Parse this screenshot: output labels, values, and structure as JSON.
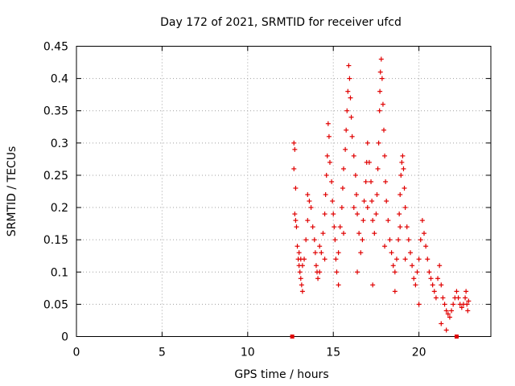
{
  "chart_data": {
    "type": "scatter",
    "title": "Day 172 of 2021, SRMTID for receiver ufcd",
    "xlabel": "GPS time / hours",
    "ylabel": "SRMTID / TECUs",
    "xlim": [
      0,
      24.2
    ],
    "ylim": [
      0,
      0.45
    ],
    "xticks": [
      0,
      5,
      10,
      15,
      20
    ],
    "xtick_labels": [
      "0",
      "5",
      "10",
      "15",
      "20"
    ],
    "yticks": [
      0,
      0.05,
      0.1,
      0.15,
      0.2,
      0.25,
      0.3,
      0.35,
      0.4,
      0.45
    ],
    "ytick_labels": [
      "0",
      "0.05",
      "0.1",
      "0.15",
      "0.2",
      "0.25",
      "0.3",
      "0.35",
      "0.4",
      "0.45"
    ],
    "grid": true,
    "marker": "+",
    "color": "#e00000",
    "axis_markers_x": [
      12.6,
      22.2
    ],
    "series": [
      {
        "name": "SRMTID",
        "points": [
          [
            12.7,
            0.3
          ],
          [
            12.75,
            0.29
          ],
          [
            12.7,
            0.26
          ],
          [
            12.8,
            0.23
          ],
          [
            12.75,
            0.19
          ],
          [
            12.8,
            0.18
          ],
          [
            12.85,
            0.17
          ],
          [
            12.9,
            0.14
          ],
          [
            12.95,
            0.12
          ],
          [
            13.0,
            0.11
          ],
          [
            13.05,
            0.1
          ],
          [
            13.1,
            0.09
          ],
          [
            13.15,
            0.08
          ],
          [
            13.2,
            0.07
          ],
          [
            13.0,
            0.13
          ],
          [
            13.1,
            0.12
          ],
          [
            13.2,
            0.11
          ],
          [
            13.3,
            0.12
          ],
          [
            13.4,
            0.15
          ],
          [
            13.5,
            0.18
          ],
          [
            13.5,
            0.22
          ],
          [
            13.6,
            0.21
          ],
          [
            13.7,
            0.2
          ],
          [
            13.8,
            0.17
          ],
          [
            13.9,
            0.15
          ],
          [
            13.95,
            0.13
          ],
          [
            14.0,
            0.11
          ],
          [
            14.05,
            0.1
          ],
          [
            14.1,
            0.09
          ],
          [
            14.2,
            0.1
          ],
          [
            14.3,
            0.13
          ],
          [
            14.4,
            0.16
          ],
          [
            14.5,
            0.19
          ],
          [
            14.55,
            0.22
          ],
          [
            14.6,
            0.25
          ],
          [
            14.65,
            0.28
          ],
          [
            14.7,
            0.33
          ],
          [
            14.75,
            0.31
          ],
          [
            14.8,
            0.27
          ],
          [
            14.9,
            0.24
          ],
          [
            14.95,
            0.21
          ],
          [
            15.0,
            0.19
          ],
          [
            15.05,
            0.17
          ],
          [
            15.1,
            0.15
          ],
          [
            15.15,
            0.12
          ],
          [
            15.2,
            0.1
          ],
          [
            15.3,
            0.13
          ],
          [
            15.4,
            0.17
          ],
          [
            15.5,
            0.2
          ],
          [
            15.55,
            0.23
          ],
          [
            15.6,
            0.26
          ],
          [
            15.7,
            0.29
          ],
          [
            15.75,
            0.32
          ],
          [
            15.8,
            0.35
          ],
          [
            15.85,
            0.38
          ],
          [
            15.9,
            0.42
          ],
          [
            15.95,
            0.4
          ],
          [
            16.0,
            0.37
          ],
          [
            16.05,
            0.34
          ],
          [
            16.1,
            0.31
          ],
          [
            16.2,
            0.28
          ],
          [
            16.3,
            0.25
          ],
          [
            16.35,
            0.22
          ],
          [
            16.4,
            0.19
          ],
          [
            16.5,
            0.16
          ],
          [
            16.6,
            0.13
          ],
          [
            16.7,
            0.15
          ],
          [
            16.75,
            0.18
          ],
          [
            16.8,
            0.21
          ],
          [
            16.9,
            0.24
          ],
          [
            16.95,
            0.27
          ],
          [
            17.0,
            0.3
          ],
          [
            17.1,
            0.27
          ],
          [
            17.2,
            0.24
          ],
          [
            17.25,
            0.21
          ],
          [
            17.3,
            0.18
          ],
          [
            17.4,
            0.16
          ],
          [
            17.5,
            0.19
          ],
          [
            17.55,
            0.22
          ],
          [
            17.6,
            0.26
          ],
          [
            17.65,
            0.3
          ],
          [
            17.7,
            0.35
          ],
          [
            17.72,
            0.38
          ],
          [
            17.75,
            0.41
          ],
          [
            17.8,
            0.43
          ],
          [
            17.85,
            0.4
          ],
          [
            17.9,
            0.36
          ],
          [
            17.95,
            0.32
          ],
          [
            18.0,
            0.28
          ],
          [
            18.05,
            0.24
          ],
          [
            18.1,
            0.21
          ],
          [
            18.2,
            0.18
          ],
          [
            18.3,
            0.15
          ],
          [
            18.4,
            0.13
          ],
          [
            18.5,
            0.11
          ],
          [
            18.6,
            0.1
          ],
          [
            18.7,
            0.12
          ],
          [
            18.8,
            0.15
          ],
          [
            18.85,
            0.19
          ],
          [
            18.9,
            0.22
          ],
          [
            18.95,
            0.25
          ],
          [
            19.0,
            0.27
          ],
          [
            19.05,
            0.28
          ],
          [
            19.1,
            0.26
          ],
          [
            19.15,
            0.23
          ],
          [
            19.2,
            0.2
          ],
          [
            19.3,
            0.17
          ],
          [
            19.4,
            0.15
          ],
          [
            19.5,
            0.13
          ],
          [
            19.6,
            0.11
          ],
          [
            19.7,
            0.09
          ],
          [
            19.8,
            0.08
          ],
          [
            19.9,
            0.1
          ],
          [
            20.0,
            0.12
          ],
          [
            20.1,
            0.15
          ],
          [
            20.2,
            0.18
          ],
          [
            20.3,
            0.16
          ],
          [
            20.4,
            0.14
          ],
          [
            20.5,
            0.12
          ],
          [
            20.6,
            0.1
          ],
          [
            20.7,
            0.09
          ],
          [
            20.8,
            0.08
          ],
          [
            20.9,
            0.07
          ],
          [
            21.0,
            0.06
          ],
          [
            21.1,
            0.09
          ],
          [
            21.2,
            0.11
          ],
          [
            21.3,
            0.08
          ],
          [
            21.4,
            0.06
          ],
          [
            21.5,
            0.05
          ],
          [
            21.6,
            0.04
          ],
          [
            21.7,
            0.035
          ],
          [
            21.8,
            0.03
          ],
          [
            21.9,
            0.04
          ],
          [
            22.0,
            0.05
          ],
          [
            22.1,
            0.06
          ],
          [
            22.2,
            0.07
          ],
          [
            22.3,
            0.06
          ],
          [
            22.4,
            0.05
          ],
          [
            22.5,
            0.045
          ],
          [
            22.6,
            0.05
          ],
          [
            22.7,
            0.06
          ],
          [
            22.75,
            0.07
          ],
          [
            22.8,
            0.05
          ],
          [
            22.85,
            0.04
          ],
          [
            22.9,
            0.055
          ],
          [
            14.2,
            0.14
          ],
          [
            14.5,
            0.12
          ],
          [
            15.3,
            0.08
          ],
          [
            16.4,
            0.1
          ],
          [
            17.3,
            0.08
          ],
          [
            18.0,
            0.14
          ],
          [
            18.6,
            0.07
          ],
          [
            19.2,
            0.12
          ],
          [
            20.0,
            0.05
          ],
          [
            21.3,
            0.02
          ],
          [
            21.6,
            0.01
          ],
          [
            15.6,
            0.16
          ],
          [
            16.2,
            0.2
          ],
          [
            17.0,
            0.2
          ],
          [
            18.9,
            0.17
          ]
        ]
      }
    ]
  }
}
